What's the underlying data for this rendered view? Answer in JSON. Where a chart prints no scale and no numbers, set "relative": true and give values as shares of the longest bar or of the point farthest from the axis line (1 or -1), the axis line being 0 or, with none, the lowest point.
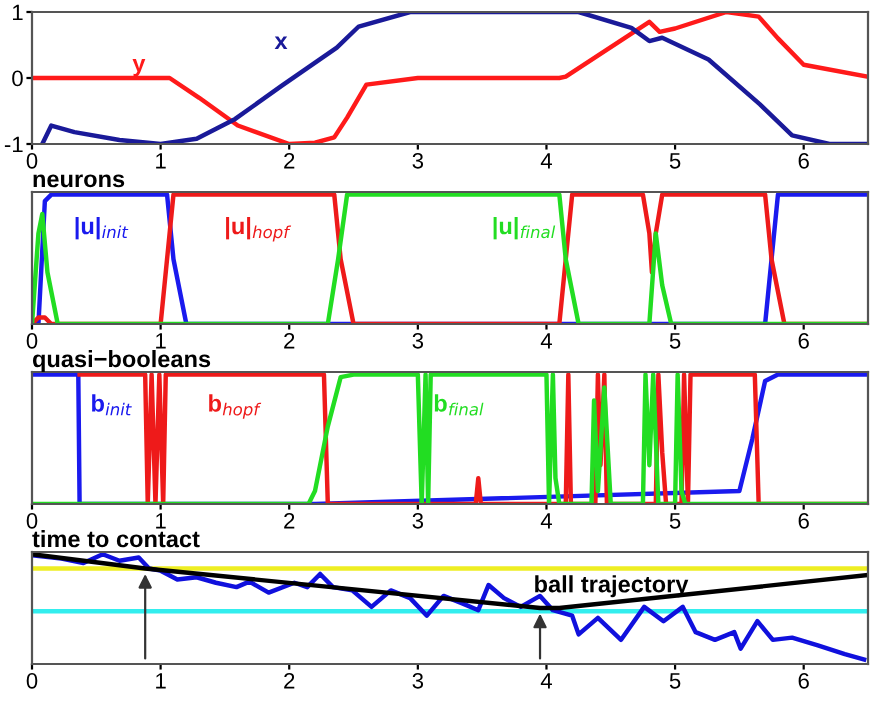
{
  "chart_data": [
    {
      "type": "line",
      "xlim": [
        0,
        6.5
      ],
      "xticks": [
        0,
        1,
        2,
        3,
        4,
        5,
        6
      ],
      "ylim": [
        -1,
        1
      ],
      "yticks": [
        -1,
        0,
        1
      ],
      "legend": false,
      "grid": false,
      "series": [
        {
          "name": "y",
          "color": "#ff1a1a",
          "x": [
            0,
            1.07,
            1.3,
            1.6,
            2.0,
            2.2,
            2.35,
            2.45,
            2.6,
            3.0,
            4.1,
            4.15,
            4.8,
            4.88,
            5.0,
            5.4,
            5.65,
            5.8,
            6.0,
            6.5
          ],
          "values": [
            0,
            0,
            -0.3,
            -0.72,
            -1,
            -0.98,
            -0.9,
            -0.6,
            -0.1,
            0,
            0,
            0.02,
            0.85,
            0.7,
            0.75,
            1,
            0.93,
            0.6,
            0.2,
            0.02
          ]
        },
        {
          "name": "x",
          "color": "#1a1a99",
          "x": [
            0.08,
            0.15,
            0.33,
            0.68,
            1.0,
            1.28,
            1.58,
            1.94,
            2.37,
            2.54,
            2.94,
            4.25,
            4.66,
            4.8,
            4.9,
            5.26,
            5.66,
            5.91,
            6.2,
            6.5
          ],
          "values": [
            -1,
            -0.72,
            -0.82,
            -0.94,
            -1,
            -0.92,
            -0.62,
            -0.12,
            0.46,
            0.78,
            1,
            1,
            0.76,
            0.56,
            0.61,
            0.28,
            -0.4,
            -0.87,
            -1,
            -1
          ]
        }
      ]
    },
    {
      "type": "line",
      "title": "neurons",
      "relative": true,
      "xlim": [
        0,
        6.5
      ],
      "xticks": [
        0,
        1,
        2,
        3,
        4,
        5,
        6
      ],
      "legend": false,
      "grid": false,
      "series": [
        {
          "name": "|u|$_{init}$",
          "color": "#1a1aee",
          "x": [
            0,
            0.05,
            0.1,
            0.15,
            1.05,
            1.1,
            1.2,
            5.7,
            5.75,
            5.8,
            6.5
          ],
          "values": [
            0,
            0,
            0.95,
            1,
            1,
            0.5,
            0,
            0,
            0.5,
            1,
            1
          ]
        },
        {
          "name": "|u|$_{hopf}$",
          "color": "#ee1a1a",
          "x": [
            0,
            0.05,
            0.1,
            0.15,
            1.0,
            1.05,
            1.1,
            2.35,
            2.4,
            2.5,
            4.1,
            4.15,
            4.2,
            4.75,
            4.8,
            4.82,
            4.85,
            4.9,
            5.7,
            5.75,
            5.85,
            6.5
          ],
          "values": [
            0,
            0.05,
            0.05,
            0,
            0,
            0.5,
            1,
            1,
            0.5,
            0,
            0,
            0.5,
            1,
            1,
            0.7,
            0.4,
            0.7,
            1,
            1,
            0.5,
            0,
            0
          ]
        },
        {
          "name": "|u|$_{final}$",
          "color": "#22dd22",
          "x": [
            0,
            0.05,
            0.08,
            0.12,
            0.2,
            2.3,
            2.38,
            2.45,
            4.1,
            4.15,
            4.25,
            4.8,
            4.85,
            4.9,
            4.97,
            6.5
          ],
          "values": [
            0,
            0.7,
            0.85,
            0.4,
            0,
            0,
            0.5,
            1,
            1,
            0.5,
            0,
            0,
            0.7,
            0.3,
            0,
            0
          ]
        }
      ]
    },
    {
      "type": "line",
      "title": "quasi−booleans",
      "relative": true,
      "xlim": [
        0,
        6.5
      ],
      "xticks": [
        0,
        1,
        2,
        3,
        4,
        5,
        6
      ],
      "legend": false,
      "grid": false,
      "series": [
        {
          "name": "b$_{init}$",
          "color": "#1a1aee",
          "x": [
            0,
            0.36,
            0.37,
            2.2,
            5.5,
            5.6,
            5.7,
            5.8,
            6.5
          ],
          "values": [
            1,
            1,
            0,
            0,
            0.1,
            0.5,
            0.95,
            1,
            1
          ]
        },
        {
          "name": "b$_{hopf}$",
          "color": "#ee1a1a",
          "x": [
            0.37,
            0.88,
            0.9,
            0.93,
            0.96,
            0.99,
            1.02,
            1.04,
            2.27,
            2.3,
            3.45,
            3.47,
            3.49,
            4.15,
            4.17,
            4.19,
            4.38,
            4.4,
            4.42,
            4.45,
            4.47,
            4.85,
            4.87,
            4.9,
            4.93,
            5.05,
            5.07,
            5.1,
            5.12,
            5.62,
            5.65,
            6.5
          ],
          "values": [
            1,
            1,
            0,
            1,
            0,
            1,
            0,
            1,
            1,
            0,
            0,
            0.2,
            0,
            0,
            1,
            0,
            0,
            1,
            0.3,
            1,
            0,
            0,
            1,
            0.4,
            0,
            0,
            1,
            0,
            1,
            1,
            0,
            0
          ]
        },
        {
          "name": "b$_{final}$",
          "color": "#22dd22",
          "x": [
            0,
            2.15,
            2.2,
            2.3,
            2.4,
            2.5,
            3.0,
            3.03,
            3.06,
            3.08,
            3.1,
            4.0,
            4.02,
            4.05,
            4.07,
            4.1,
            4.35,
            4.37,
            4.4,
            4.45,
            4.5,
            4.75,
            4.77,
            4.8,
            4.83,
            4.87,
            5.0,
            5.02,
            5.05,
            5.08,
            6.5
          ],
          "values": [
            0,
            0,
            0.1,
            0.6,
            0.98,
            1,
            1,
            0,
            1,
            0,
            1,
            1,
            0,
            1,
            0.2,
            0,
            0,
            0.8,
            0.1,
            0.9,
            0,
            0,
            1,
            0.3,
            1,
            0,
            0,
            1,
            0.1,
            0,
            0
          ]
        }
      ]
    },
    {
      "type": "line",
      "title": "time to contact",
      "relative": true,
      "xlim": [
        0,
        6.5
      ],
      "xticks": [
        0,
        1,
        2,
        3,
        4,
        5,
        6
      ],
      "legend": false,
      "grid": false,
      "ref_lines": [
        {
          "axis": "y",
          "value": 0.87,
          "color": "#eeee22"
        },
        {
          "axis": "y",
          "value": 0.48,
          "color": "#33eeee"
        }
      ],
      "series": [
        {
          "color": "#1010dd",
          "x": [
            0,
            0.23,
            0.4,
            0.55,
            0.68,
            0.83,
            0.91,
            1.0,
            1.13,
            1.28,
            1.43,
            1.59,
            1.69,
            1.84,
            2.04,
            2.14,
            2.24,
            2.34,
            2.49,
            2.64,
            2.79,
            2.94,
            3.07,
            3.2,
            3.35,
            3.47,
            3.55,
            3.67,
            3.8,
            3.95,
            4.05,
            4.2,
            4.25,
            4.4,
            4.58,
            4.76,
            4.91,
            5.06,
            5.16,
            5.31,
            5.46,
            5.51,
            5.64,
            5.76,
            5.91,
            6.11,
            6.32,
            6.47
          ],
          "values": [
            0.99,
            0.96,
            0.92,
            1.0,
            0.94,
            0.97,
            0.87,
            0.85,
            0.77,
            0.79,
            0.74,
            0.7,
            0.75,
            0.65,
            0.74,
            0.7,
            0.82,
            0.7,
            0.67,
            0.52,
            0.67,
            0.6,
            0.44,
            0.62,
            0.55,
            0.49,
            0.72,
            0.6,
            0.52,
            0.62,
            0.49,
            0.44,
            0.27,
            0.42,
            0.22,
            0.52,
            0.39,
            0.52,
            0.29,
            0.22,
            0.29,
            0.14,
            0.39,
            0.22,
            0.24,
            0.17,
            0.09,
            0.04
          ]
        },
        {
          "name": "ball trajectory",
          "color": "#000000",
          "x": [
            0,
            0.88,
            3.95,
            4.1,
            6.5
          ],
          "values": [
            1.0,
            0.87,
            0.51,
            0.51,
            0.81
          ]
        }
      ]
    }
  ]
}
